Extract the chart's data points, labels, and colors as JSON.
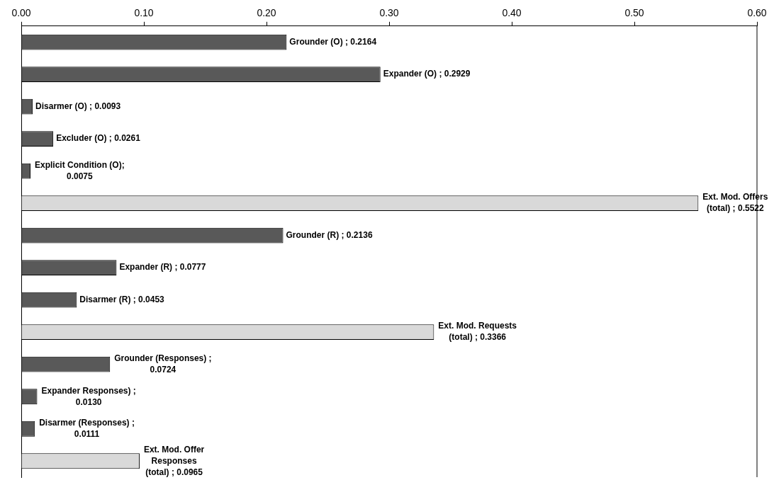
{
  "chart_data": {
    "type": "bar",
    "orientation": "horizontal",
    "categories": [
      null,
      null,
      null,
      null,
      null,
      null,
      null,
      null,
      null,
      null,
      null,
      null,
      null,
      null
    ],
    "values": [
      0.2164,
      0.2929,
      0.0093,
      0.0261,
      0.0075,
      0.5522,
      0.2136,
      0.0777,
      0.0453,
      0.3366,
      0.0724,
      0.013,
      0.0111,
      0.0965
    ],
    "colors": [
      "#595959",
      "#595959",
      "#595959",
      "#595959",
      "#595959",
      "#d9d9d9",
      "#595959",
      "#595959",
      "#595959",
      "#d9d9d9",
      "#595959",
      "#595959",
      "#595959",
      "#d9d9d9"
    ],
    "value_labels": [
      "Grounder (O) ; 0.2164",
      "Expander (O) ; 0.2929",
      "Disarmer (O) ; 0.0093",
      "Excluder (O) ; 0.0261",
      "Explicit Condition (O);\n0.0075",
      "Ext. Mod. Offers\n(total) ; 0.5522",
      "Grounder (R) ; 0.2136",
      "Expander (R) ; 0.0777",
      "Disarmer (R) ; 0.0453",
      "Ext. Mod. Requests\n(total) ; 0.3366",
      "Grounder (Responses) ;\n0.0724",
      "Expander Responses) ;\n0.0130",
      "Disarmer (Responses) ;\n0.0111",
      "Ext. Mod. Offer\nResponses\n(total) ; 0.0965"
    ],
    "xlim": [
      0,
      0.6
    ],
    "xticks": [
      {
        "value": 0,
        "label": "0.00"
      },
      {
        "value": 0.1,
        "label": "0.10"
      },
      {
        "value": 0.2,
        "label": "0.20"
      },
      {
        "value": 0.3,
        "label": "0.30"
      },
      {
        "value": 0.4,
        "label": "0.40"
      },
      {
        "value": 0.5,
        "label": "0.50"
      },
      {
        "value": 0.6,
        "label": "0.60"
      }
    ],
    "grid": false,
    "legend": false
  }
}
